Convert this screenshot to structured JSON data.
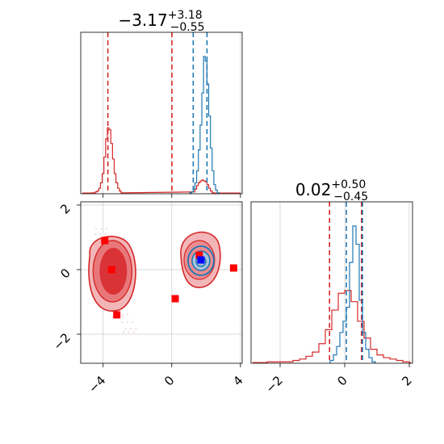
{
  "chart_data": [
    {
      "type": "step-histogram",
      "panel": "top-left (parameter 1 marginal)",
      "title": {
        "value": "−3.17",
        "sup": "+3.18",
        "sub": "−0.55"
      },
      "xlim": [
        -5.3,
        4.1
      ],
      "x_ticks": [
        -4,
        0,
        4
      ],
      "grid": true,
      "series": [
        {
          "color": "#d62728",
          "bins_x": [
            -4.6,
            -4.5,
            -4.4,
            -4.3,
            -4.2,
            -4.1,
            -4.0,
            -3.9,
            -3.8,
            -3.7,
            -3.6,
            -3.5,
            -3.4,
            -3.3,
            -3.2,
            -3.1,
            -3.0,
            -2.9,
            1.3,
            1.4,
            1.5,
            1.6,
            1.7,
            1.8,
            1.9,
            2.0,
            2.1,
            2.2,
            2.3,
            2.4
          ],
          "counts": [
            1,
            1,
            2,
            3,
            6,
            12,
            22,
            40,
            60,
            72,
            70,
            55,
            38,
            22,
            12,
            6,
            3,
            1,
            2,
            5,
            9,
            12,
            14,
            15,
            14,
            13,
            10,
            6,
            3,
            1
          ]
        },
        {
          "color": "#1f77b4",
          "bins_x": [
            1.1,
            1.2,
            1.3,
            1.4,
            1.5,
            1.6,
            1.7,
            1.8,
            1.9,
            2.0,
            2.1,
            2.2,
            2.3,
            2.4,
            2.5,
            2.6,
            2.7
          ],
          "counts": [
            1,
            2,
            5,
            12,
            25,
            48,
            75,
            110,
            150,
            145,
            120,
            85,
            50,
            25,
            10,
            4,
            1
          ]
        }
      ],
      "quantile_lines": [
        {
          "x": -3.72,
          "color": "#d62728"
        },
        {
          "x": 0.01,
          "color": "#d62728"
        },
        {
          "x": 1.25,
          "color": "#1f77b4"
        },
        {
          "x": 2.05,
          "color": "#1f77b4"
        }
      ]
    },
    {
      "type": "contour-2d",
      "panel": "bottom-left (joint)",
      "xlim": [
        -5.3,
        4.1
      ],
      "ylim": [
        -2.9,
        2.1
      ],
      "x_ticks": [
        -4,
        0,
        4
      ],
      "y_ticks": [
        2,
        0,
        -2
      ],
      "grid": true,
      "red_samples": [
        {
          "x": -3.9,
          "y": 0.9
        },
        {
          "x": -3.2,
          "y": -1.4
        },
        {
          "x": 0.2,
          "y": -0.9
        },
        {
          "x": -3.5,
          "y": 0.0
        },
        {
          "x": 3.6,
          "y": 0.05
        },
        {
          "x": 1.6,
          "y": 0.45
        }
      ],
      "blue_samples": [
        {
          "x": 1.7,
          "y": 0.3
        }
      ]
    },
    {
      "type": "step-histogram",
      "panel": "bottom-right (parameter 2 marginal)",
      "title": {
        "value": "0.02",
        "sup": "+0.50",
        "sub": "−0.45"
      },
      "xlim": [
        -2.9,
        2.1
      ],
      "x_ticks": [
        -2,
        0,
        2
      ],
      "grid": true,
      "series": [
        {
          "color": "#d62728",
          "bins_x": [
            -2.3,
            -2.1,
            -1.9,
            -1.7,
            -1.5,
            -1.3,
            -1.1,
            -0.9,
            -0.7,
            -0.5,
            -0.3,
            -0.1,
            0.1,
            0.3,
            0.5,
            0.7,
            0.9,
            1.1,
            1.3,
            1.5,
            1.7,
            1.9
          ],
          "counts": [
            1,
            1,
            1,
            1,
            2,
            3,
            5,
            8,
            14,
            24,
            38,
            50,
            52,
            44,
            30,
            18,
            10,
            6,
            4,
            3,
            2,
            1
          ]
        },
        {
          "color": "#1f77b4",
          "bins_x": [
            -0.4,
            -0.3,
            -0.2,
            -0.1,
            0.0,
            0.1,
            0.2,
            0.3,
            0.4,
            0.5,
            0.6,
            0.7,
            0.8,
            0.9
          ],
          "counts": [
            2,
            6,
            12,
            22,
            30,
            40,
            72,
            98,
            85,
            45,
            22,
            10,
            4,
            1
          ]
        }
      ],
      "quantile_lines": [
        {
          "x": -0.47,
          "color": "#d62728"
        },
        {
          "x": 0.52,
          "color": "#d62728"
        },
        {
          "x": 0.05,
          "color": "#1f77b4"
        },
        {
          "x": 0.55,
          "color": "#1f77b4"
        }
      ]
    }
  ]
}
